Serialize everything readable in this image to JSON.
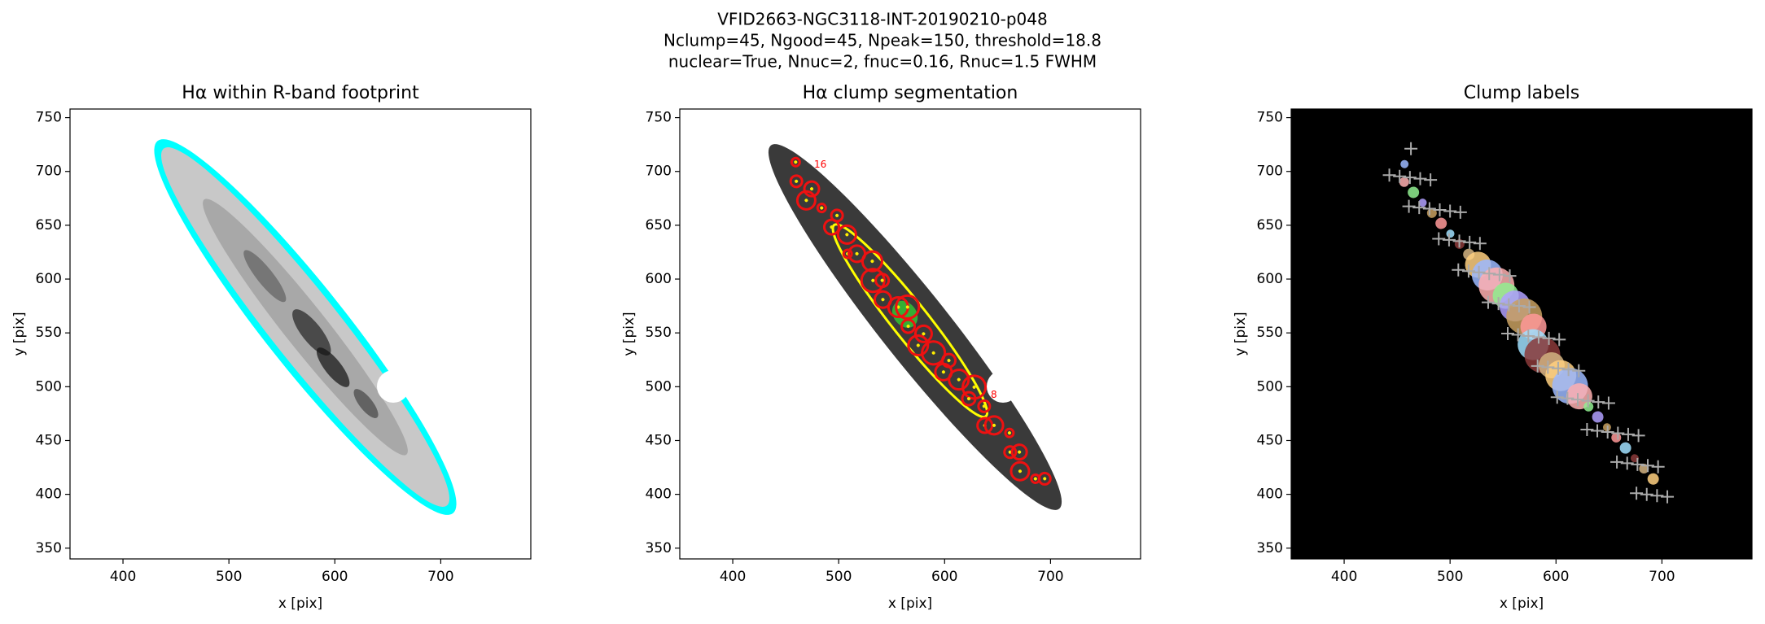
{
  "title_lines": [
    "VFID2663-NGC3118-INT-20190210-p048",
    "Nclump=45, Ngood=45, Npeak=150, threshold=18.8",
    "nuclear=True, Nnuc=2, fnuc=0.16, Rnuc=1.5 FWHM"
  ],
  "chart_data": [
    {
      "type": "image",
      "title": "Hα within R-band footprint",
      "xlabel": "x [pix]",
      "ylabel": "y [pix]",
      "xlim": [
        350,
        785
      ],
      "ylim": [
        340,
        758
      ],
      "xticks": [
        400,
        500,
        600,
        700
      ],
      "yticks": [
        350,
        400,
        450,
        500,
        550,
        600,
        650,
        700,
        750
      ]
    },
    {
      "type": "image",
      "title": "Hα clump segmentation",
      "xlabel": "x [pix]",
      "ylabel": "y [pix]",
      "xlim": [
        350,
        785
      ],
      "ylim": [
        340,
        758
      ],
      "xticks": [
        400,
        500,
        600,
        700
      ],
      "yticks": [
        350,
        400,
        450,
        500,
        550,
        600,
        650,
        700,
        750
      ],
      "annotations": [
        "16",
        "8"
      ]
    },
    {
      "type": "image",
      "title": "Clump labels",
      "xlabel": "x [pix]",
      "ylabel": "y [pix]",
      "xlim": [
        350,
        785
      ],
      "ylim": [
        340,
        758
      ],
      "xticks": [
        400,
        500,
        600,
        700
      ],
      "yticks": [
        350,
        400,
        450,
        500,
        550,
        600,
        650,
        700,
        750
      ]
    }
  ]
}
